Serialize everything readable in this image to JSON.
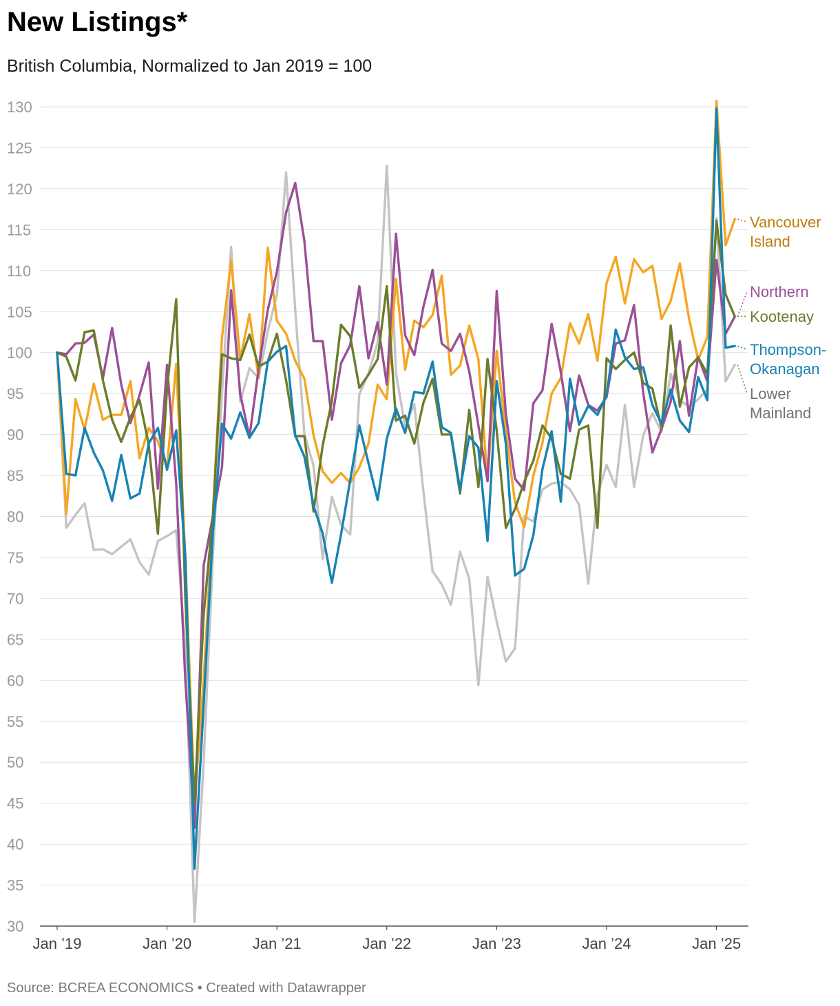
{
  "title": "New Listings*",
  "subtitle": "British Columbia, Normalized to Jan 2019 = 100",
  "footer": "Source: BCREA ECONOMICS • Created with Datawrapper",
  "chart_data": {
    "type": "line",
    "x_start": "2019-01",
    "x": [
      "Jan ’19",
      "Feb ’19",
      "Mar ’19",
      "Apr ’19",
      "May ’19",
      "Jun ’19",
      "Jul ’19",
      "Aug ’19",
      "Sep ’19",
      "Oct ’19",
      "Nov ’19",
      "Dec ’19",
      "Jan ’20",
      "Feb ’20",
      "Mar ’20",
      "Apr ’20",
      "May ’20",
      "Jun ’20",
      "Jul ’20",
      "Aug ’20",
      "Sep ’20",
      "Oct ’20",
      "Nov ’20",
      "Dec ’20",
      "Jan ’21",
      "Feb ’21",
      "Mar ’21",
      "Apr ’21",
      "May ’21",
      "Jun ’21",
      "Jul ’21",
      "Aug ’21",
      "Sep ’21",
      "Oct ’21",
      "Nov ’21",
      "Dec ’21",
      "Jan ’22",
      "Feb ’22",
      "Mar ’22",
      "Apr ’22",
      "May ’22",
      "Jun ’22",
      "Jul ’22",
      "Aug ’22",
      "Sep ’22",
      "Oct ’22",
      "Nov ’22",
      "Dec ’22",
      "Jan ’23",
      "Feb ’23",
      "Mar ’23",
      "Apr ’23",
      "May ’23",
      "Jun ’23",
      "Jul ’23",
      "Aug ’23",
      "Sep ’23",
      "Oct ’23",
      "Nov ’23",
      "Dec ’23",
      "Jan ’24",
      "Feb ’24",
      "Mar ’24",
      "Apr ’24",
      "May ’24",
      "Jun ’24",
      "Jul ’24",
      "Aug ’24",
      "Sep ’24",
      "Oct ’24",
      "Nov ’24",
      "Dec ’24",
      "Jan ’25",
      "Feb ’25",
      "Mar ’25"
    ],
    "xticks": [
      "Jan ’19",
      "Jan ’20",
      "Jan ’21",
      "Jan ’22",
      "Jan ’23",
      "Jan ’24",
      "Jan ’25"
    ],
    "xtick_index": [
      0,
      12,
      24,
      36,
      48,
      60,
      72
    ],
    "yticks": [
      30,
      35,
      40,
      45,
      50,
      55,
      60,
      65,
      70,
      75,
      80,
      85,
      90,
      95,
      100,
      105,
      110,
      115,
      120,
      125,
      130
    ],
    "ylim": [
      30,
      130
    ],
    "xlabel": "",
    "ylabel": "",
    "grid": true,
    "legend": "inline labels at right end of lines",
    "series": [
      {
        "name": "Lower Mainland",
        "label_lines": [
          "Lower",
          "Mainland"
        ],
        "color": "#c4c4c4",
        "label_color": "#737373",
        "values": [
          100,
          78.6,
          80.2,
          81.6,
          75.9,
          76.0,
          75.4,
          76.3,
          77.2,
          74.4,
          72.9,
          77.0,
          77.6,
          78.3,
          64.0,
          30.5,
          50.0,
          75.0,
          95.0,
          112.9,
          94.0,
          98.1,
          96.9,
          102.6,
          107.1,
          122.0,
          105.2,
          90.0,
          86.2,
          74.8,
          82.4,
          79.0,
          77.8,
          94.9,
          97.5,
          101.2,
          122.8,
          97.5,
          91.0,
          93.7,
          83.0,
          73.3,
          71.7,
          69.2,
          75.7,
          72.4,
          59.4,
          72.6,
          67.2,
          62.3,
          63.9,
          80.0,
          79.4,
          83.3,
          84.0,
          84.2,
          83.3,
          81.4,
          71.8,
          82.6,
          86.3,
          83.6,
          93.6,
          83.6,
          89.9,
          92.6,
          90.3,
          97.4,
          94.2,
          93.4,
          94.3,
          95.5,
          116.4,
          96.5,
          98.5
        ]
      },
      {
        "name": "Vancouver Island",
        "label_lines": [
          "Vancouver",
          "Island"
        ],
        "color": "#f5a623",
        "label_color": "#c07c0a",
        "values": [
          100,
          80.3,
          94.3,
          90.6,
          96.2,
          91.8,
          92.4,
          92.4,
          96.5,
          87.1,
          90.8,
          89.2,
          86.0,
          98.6,
          75.0,
          45.0,
          60.0,
          80.0,
          101.8,
          111.2,
          99.2,
          104.7,
          96.9,
          112.8,
          103.9,
          102.3,
          99.0,
          96.8,
          89.9,
          85.5,
          84.1,
          85.3,
          84.1,
          86.0,
          88.9,
          96.1,
          94.3,
          109.0,
          97.9,
          103.9,
          103.1,
          104.6,
          109.4,
          97.3,
          98.4,
          103.3,
          99.2,
          84.4,
          100.2,
          90.3,
          81.7,
          78.7,
          85.0,
          89.0,
          95.0,
          96.9,
          103.6,
          101.1,
          104.7,
          99.0,
          108.5,
          111.7,
          106.0,
          111.4,
          109.8,
          110.6,
          104.1,
          106.3,
          110.9,
          104.2,
          99.1,
          101.9,
          130.7,
          113.1,
          116.3
        ]
      },
      {
        "name": "Northern",
        "label_lines": [
          "Northern"
        ],
        "color": "#9c4f96",
        "label_color": "#9c4f96",
        "values": [
          100,
          99.8,
          101.1,
          101.2,
          102.2,
          96.9,
          103.0,
          96.1,
          91.4,
          94.8,
          98.8,
          83.4,
          98.5,
          84.0,
          60.0,
          42.0,
          74.0,
          80.0,
          86.0,
          107.6,
          94.9,
          89.7,
          98.0,
          105.2,
          109.9,
          117.1,
          120.7,
          113.6,
          101.4,
          101.4,
          91.8,
          98.7,
          100.9,
          108.1,
          99.3,
          103.7,
          96.1,
          114.5,
          102.1,
          99.7,
          105.6,
          110.1,
          101.1,
          100.2,
          102.3,
          97.7,
          91.1,
          84.3,
          107.5,
          92.5,
          84.6,
          83.2,
          93.8,
          95.4,
          103.5,
          97.6,
          90.4,
          97.2,
          93.6,
          92.9,
          94.6,
          101.1,
          101.5,
          105.8,
          95.1,
          87.8,
          90.7,
          94.0,
          101.4,
          92.3,
          99.5,
          96.5,
          111.3,
          102.3,
          104.4
        ]
      },
      {
        "name": "Kootenay",
        "label_lines": [
          "Kootenay"
        ],
        "color": "#6b7c2b",
        "label_color": "#6b7c2b",
        "values": [
          100,
          99.5,
          96.6,
          102.5,
          102.7,
          96.6,
          91.8,
          89.1,
          92.1,
          94.2,
          88.8,
          77.9,
          95.6,
          106.5,
          70.0,
          45.0,
          68.0,
          80.0,
          99.8,
          99.3,
          99.1,
          102.2,
          98.3,
          98.9,
          102.3,
          96.6,
          89.8,
          89.8,
          80.6,
          88.7,
          94.1,
          103.4,
          102.0,
          95.7,
          97.3,
          99.2,
          108.1,
          91.7,
          92.3,
          88.9,
          93.9,
          96.8,
          90.0,
          90.0,
          82.8,
          93.0,
          83.6,
          99.2,
          90.5,
          78.6,
          80.9,
          84.2,
          86.8,
          91.1,
          89.5,
          85.2,
          84.6,
          90.6,
          91.1,
          78.6,
          99.3,
          98.0,
          99.1,
          100.0,
          96.3,
          95.6,
          90.8,
          103.3,
          93.4,
          98.2,
          99.4,
          97.4,
          116.1,
          107.1,
          104.4
        ]
      },
      {
        "name": "Thompson-Okanagan",
        "label_lines": [
          "Thompson-",
          "Okanagan"
        ],
        "color": "#1783b3",
        "label_color": "#1783b3",
        "values": [
          100,
          85.2,
          85.0,
          90.8,
          87.8,
          85.6,
          81.9,
          87.5,
          82.2,
          82.8,
          88.9,
          90.8,
          85.7,
          90.5,
          75.0,
          37.0,
          57.0,
          78.0,
          91.3,
          89.5,
          92.7,
          89.6,
          91.4,
          98.9,
          100.1,
          100.8,
          89.9,
          87.3,
          81.3,
          77.9,
          71.9,
          77.8,
          84.4,
          91.1,
          86.5,
          82.0,
          89.5,
          93.2,
          90.2,
          95.2,
          95.0,
          98.9,
          90.9,
          90.2,
          83.3,
          89.8,
          88.4,
          77.0,
          96.5,
          88.9,
          72.8,
          73.6,
          77.7,
          85.8,
          90.4,
          81.8,
          96.8,
          91.2,
          93.5,
          92.4,
          94.8,
          102.8,
          99.4,
          98.0,
          98.2,
          93.6,
          91.3,
          95.5,
          91.7,
          90.3,
          97.0,
          94.2,
          129.8,
          100.6,
          100.8
        ]
      }
    ]
  }
}
